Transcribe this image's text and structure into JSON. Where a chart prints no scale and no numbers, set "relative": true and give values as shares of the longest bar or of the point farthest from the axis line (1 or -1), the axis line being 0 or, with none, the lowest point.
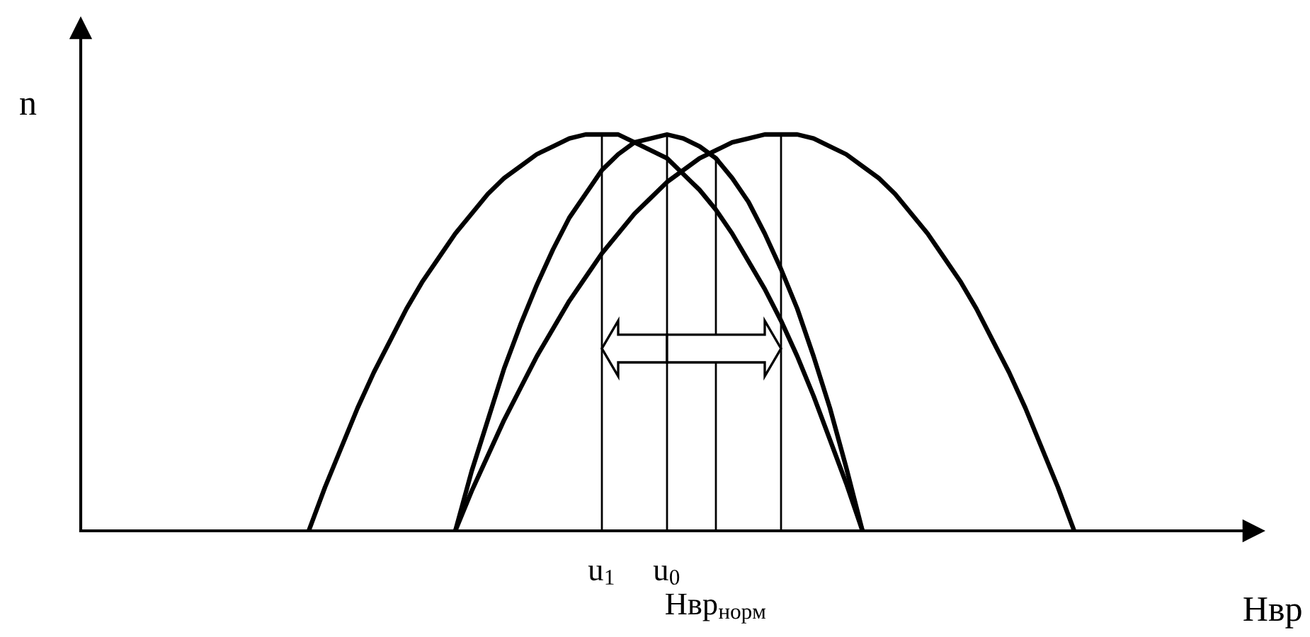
{
  "chart_data": {
    "type": "line",
    "xlabel": "Нвр",
    "ylabel": "n",
    "relative": true,
    "marker": "none",
    "line_style": "solid",
    "legend": false,
    "grid": false,
    "categories": [
      null,
      null,
      null,
      null,
      null,
      null,
      null,
      null,
      null,
      null,
      null,
      null,
      null,
      null,
      null,
      null,
      null,
      null,
      null,
      null,
      null,
      null,
      null,
      null,
      null,
      null,
      null,
      null,
      null,
      null,
      null,
      null,
      "u$_{1}$",
      null,
      null,
      null,
      "u$_{0}$",
      null,
      null,
      "Нвр$_{норм}$",
      null,
      null,
      null,
      null,
      null,
      null,
      null,
      null,
      null,
      null,
      null,
      null,
      null,
      null,
      null,
      null,
      null,
      null,
      null,
      null,
      null,
      null,
      null,
      null,
      null,
      null,
      null,
      null,
      null,
      null,
      null,
      null,
      null
    ],
    "series": [
      {
        "color": "#000000",
        "values": [
          null,
          null,
          null,
          null,
          null,
          null,
          null,
          null,
          null,
          null,
          null,
          null,
          null,
          null,
          0,
          0.11,
          0.21,
          0.31,
          0.4,
          0.48,
          0.56,
          0.63,
          0.69,
          0.75,
          0.8,
          0.85,
          0.89,
          0.92,
          0.95,
          0.97,
          0.99,
          1.0,
          1,
          1.0,
          0.98,
          0.96,
          0.94,
          0.9,
          0.86,
          0.81,
          0.75,
          0.68,
          0.61,
          0.53,
          0.44,
          0.34,
          0.23,
          0.12,
          0,
          null,
          null,
          null,
          null,
          null,
          null,
          null,
          null,
          null,
          null,
          null,
          null,
          null,
          null,
          null,
          null,
          null,
          null,
          null,
          null,
          null,
          null,
          null,
          null
        ]
      },
      {
        "color": "#000000",
        "values": [
          null,
          null,
          null,
          null,
          null,
          null,
          null,
          null,
          null,
          null,
          null,
          null,
          null,
          null,
          null,
          null,
          null,
          null,
          null,
          null,
          null,
          null,
          null,
          0,
          0.15,
          0.28,
          0.41,
          0.52,
          0.62,
          0.71,
          0.79,
          0.85,
          0.91,
          0.95,
          0.98,
          0.99,
          1,
          0.99,
          0.97,
          0.94,
          0.89,
          0.83,
          0.75,
          0.66,
          0.56,
          0.44,
          0.31,
          0.16,
          0,
          null,
          null,
          null,
          null,
          null,
          null,
          null,
          null,
          null,
          null,
          null,
          null,
          null,
          null,
          null,
          null,
          null,
          null,
          null,
          null,
          null,
          null,
          null,
          null
        ]
      },
      {
        "color": "#000000",
        "values": [
          null,
          null,
          null,
          null,
          null,
          null,
          null,
          null,
          null,
          null,
          null,
          null,
          null,
          null,
          null,
          null,
          null,
          null,
          null,
          null,
          null,
          null,
          null,
          0,
          0.1,
          0.19,
          0.28,
          0.36,
          0.44,
          0.51,
          0.58,
          0.64,
          0.7,
          0.75,
          0.8,
          0.84,
          0.88,
          0.91,
          0.94,
          0.96,
          0.98,
          0.99,
          1.0,
          1,
          1.0,
          0.99,
          0.97,
          0.95,
          0.92,
          0.89,
          0.85,
          0.8,
          0.75,
          0.69,
          0.63,
          0.56,
          0.48,
          0.4,
          0.31,
          0.21,
          0.11,
          0,
          null,
          null,
          null,
          null,
          null,
          null,
          null,
          null,
          null,
          null,
          null
        ]
      },
      {
        "type": "bar",
        "color": "#000000",
        "values": [
          null,
          null,
          null,
          null,
          null,
          null,
          null,
          null,
          null,
          null,
          null,
          null,
          null,
          null,
          null,
          null,
          null,
          null,
          null,
          null,
          null,
          null,
          null,
          null,
          null,
          null,
          null,
          null,
          null,
          null,
          null,
          null,
          1,
          null,
          null,
          null,
          1,
          null,
          null,
          0.94,
          null,
          null,
          null,
          1,
          null,
          null,
          null,
          null,
          null,
          null,
          null,
          null,
          null,
          null,
          null,
          null,
          null,
          null,
          null,
          null,
          null,
          null,
          null,
          null,
          null,
          null,
          null,
          null,
          null,
          null,
          null,
          null,
          null
        ]
      }
    ]
  }
}
